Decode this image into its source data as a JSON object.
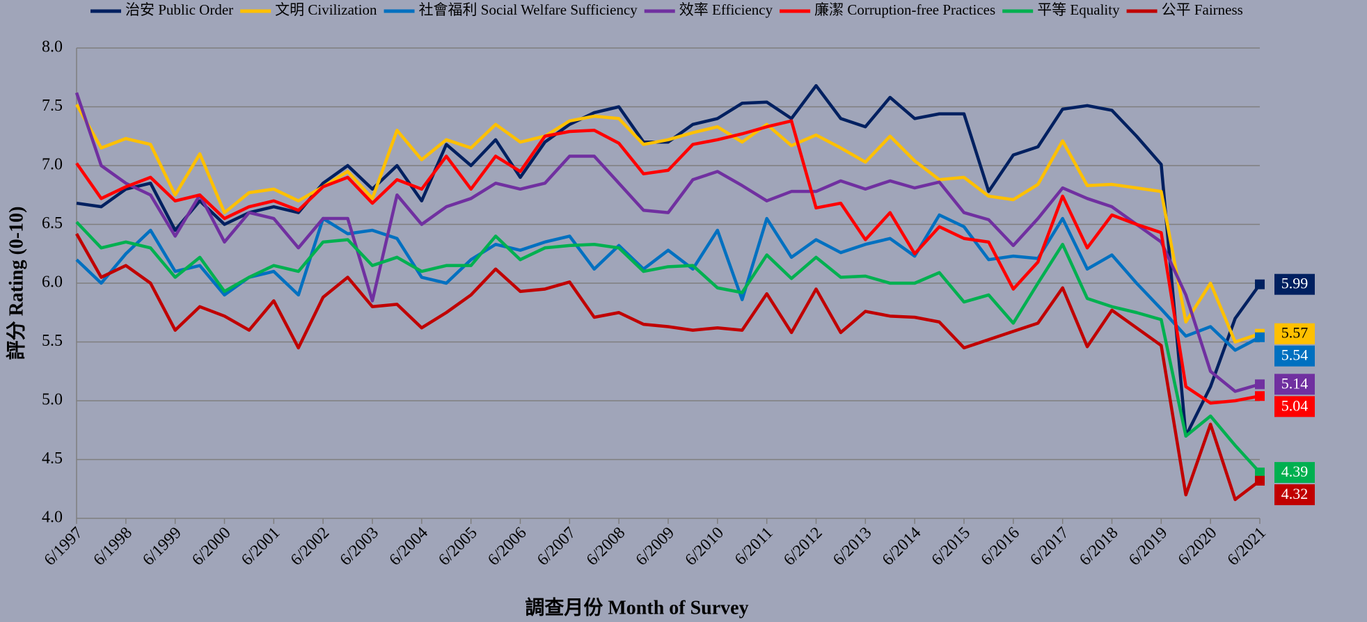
{
  "chart_data": {
    "type": "line",
    "x_label": "調查月份 Month of Survey",
    "y_label": "評分 Rating (0-10)",
    "x": [
      "6/1997",
      "12/1997",
      "6/1998",
      "12/1998",
      "6/1999",
      "12/1999",
      "6/2000",
      "12/2000",
      "6/2001",
      "12/2001",
      "6/2002",
      "12/2002",
      "6/2003",
      "12/2003",
      "6/2004",
      "12/2004",
      "6/2005",
      "12/2005",
      "6/2006",
      "12/2006",
      "6/2007",
      "12/2007",
      "6/2008",
      "12/2008",
      "6/2009",
      "12/2009",
      "6/2010",
      "12/2010",
      "6/2011",
      "12/2011",
      "6/2012",
      "12/2012",
      "6/2013",
      "12/2013",
      "6/2014",
      "12/2014",
      "6/2015",
      "12/2015",
      "6/2016",
      "12/2016",
      "6/2017",
      "12/2017",
      "6/2018",
      "12/2018",
      "6/2019",
      "12/2019",
      "6/2020",
      "12/2020",
      "6/2021"
    ],
    "xlim": [
      "6/1997",
      "6/2021"
    ],
    "xticks": [
      "6/1997",
      "6/1998",
      "6/1999",
      "6/2000",
      "6/2001",
      "6/2002",
      "6/2003",
      "6/2004",
      "6/2005",
      "6/2006",
      "6/2007",
      "6/2008",
      "6/2009",
      "6/2010",
      "6/2011",
      "6/2012",
      "6/2013",
      "6/2014",
      "6/2015",
      "6/2016",
      "6/2017",
      "6/2018",
      "6/2019",
      "6/2020",
      "6/2021"
    ],
    "ylim": [
      4,
      8
    ],
    "yticks": [
      {
        "value": 4,
        "label": "4.0"
      },
      {
        "value": 4.5,
        "label": "4.5"
      },
      {
        "value": 5,
        "label": "5.0"
      },
      {
        "value": 5.5,
        "label": "5.5"
      },
      {
        "value": 6,
        "label": "6.0"
      },
      {
        "value": 6.5,
        "label": "6.5"
      },
      {
        "value": 7,
        "label": "7.0"
      },
      {
        "value": 7.5,
        "label": "7.5"
      },
      {
        "value": 8,
        "label": "8.0"
      }
    ],
    "grid": true,
    "legend": "top",
    "series": [
      {
        "name": "治安 Public Order",
        "color": "#002060",
        "values": [
          6.68,
          6.65,
          6.8,
          6.85,
          6.45,
          6.7,
          6.5,
          6.6,
          6.65,
          6.6,
          6.85,
          7.0,
          6.8,
          7.0,
          6.7,
          7.18,
          7.0,
          7.22,
          6.9,
          7.2,
          7.35,
          7.45,
          7.5,
          7.2,
          7.2,
          7.35,
          7.4,
          7.53,
          7.54,
          7.4,
          7.68,
          7.4,
          7.33,
          7.58,
          7.4,
          7.44,
          7.44,
          6.78,
          7.09,
          7.16,
          7.48,
          7.51,
          7.47,
          7.25,
          7.01,
          4.7,
          5.12,
          5.7,
          5.99
        ]
      },
      {
        "name": "文明 Civilization",
        "color": "#ffc000",
        "values": [
          7.52,
          7.15,
          7.23,
          7.18,
          6.75,
          7.1,
          6.6,
          6.77,
          6.8,
          6.7,
          6.82,
          6.95,
          6.72,
          7.3,
          7.05,
          7.22,
          7.15,
          7.35,
          7.2,
          7.25,
          7.38,
          7.42,
          7.4,
          7.18,
          7.22,
          7.28,
          7.33,
          7.2,
          7.35,
          7.17,
          7.26,
          7.15,
          7.03,
          7.25,
          7.04,
          6.88,
          6.9,
          6.74,
          6.71,
          6.84,
          7.21,
          6.83,
          6.84,
          6.81,
          6.78,
          5.67,
          6.0,
          5.5,
          5.57
        ]
      },
      {
        "name": "社會福利 Social Welfare Sufficiency",
        "color": "#0070c0",
        "values": [
          6.2,
          6.0,
          6.25,
          6.45,
          6.1,
          6.15,
          5.9,
          6.05,
          6.1,
          5.9,
          6.55,
          6.42,
          6.45,
          6.38,
          6.05,
          6.0,
          6.2,
          6.33,
          6.28,
          6.35,
          6.4,
          6.12,
          6.32,
          6.12,
          6.28,
          6.12,
          6.45,
          5.86,
          6.55,
          6.22,
          6.37,
          6.26,
          6.33,
          6.38,
          6.23,
          6.58,
          6.48,
          6.2,
          6.23,
          6.21,
          6.55,
          6.12,
          6.24,
          6.0,
          5.78,
          5.55,
          5.63,
          5.43,
          5.54
        ]
      },
      {
        "name": "效率 Efficiency",
        "color": "#7030a0",
        "values": [
          7.62,
          7.0,
          6.85,
          6.75,
          6.4,
          6.75,
          6.35,
          6.6,
          6.55,
          6.3,
          6.55,
          6.55,
          5.85,
          6.75,
          6.5,
          6.65,
          6.72,
          6.85,
          6.8,
          6.85,
          7.08,
          7.08,
          6.85,
          6.62,
          6.6,
          6.88,
          6.95,
          6.83,
          6.7,
          6.78,
          6.78,
          6.87,
          6.8,
          6.87,
          6.81,
          6.86,
          6.6,
          6.54,
          6.32,
          6.55,
          6.81,
          6.72,
          6.65,
          6.5,
          6.35,
          5.9,
          5.25,
          5.08,
          5.14
        ]
      },
      {
        "name": "廉潔 Corruption-free Practices",
        "color": "#ff0000",
        "values": [
          7.02,
          6.72,
          6.82,
          6.9,
          6.7,
          6.75,
          6.55,
          6.65,
          6.7,
          6.62,
          6.82,
          6.9,
          6.68,
          6.88,
          6.8,
          7.08,
          6.8,
          7.08,
          6.95,
          7.25,
          7.29,
          7.3,
          7.19,
          6.93,
          6.96,
          7.18,
          7.22,
          7.27,
          7.33,
          7.38,
          6.64,
          6.68,
          6.37,
          6.6,
          6.25,
          6.48,
          6.38,
          6.35,
          5.95,
          6.18,
          6.74,
          6.3,
          6.58,
          6.5,
          6.43,
          5.12,
          4.98,
          5.0,
          5.04
        ]
      },
      {
        "name": "平等 Equality",
        "color": "#00b050",
        "values": [
          6.52,
          6.3,
          6.35,
          6.3,
          6.05,
          6.22,
          5.93,
          6.05,
          6.15,
          6.1,
          6.35,
          6.37,
          6.15,
          6.22,
          6.1,
          6.15,
          6.15,
          6.4,
          6.2,
          6.3,
          6.32,
          6.33,
          6.3,
          6.1,
          6.14,
          6.15,
          5.96,
          5.92,
          6.24,
          6.04,
          6.22,
          6.05,
          6.06,
          6.0,
          6.0,
          6.09,
          5.84,
          5.9,
          5.66,
          6.0,
          6.33,
          5.87,
          5.8,
          5.75,
          5.69,
          4.7,
          4.87,
          4.62,
          4.39
        ]
      },
      {
        "name": "公平 Fairness",
        "color": "#c00000",
        "values": [
          6.42,
          6.05,
          6.15,
          6.0,
          5.6,
          5.8,
          5.72,
          5.6,
          5.85,
          5.45,
          5.88,
          6.05,
          5.8,
          5.82,
          5.62,
          5.75,
          5.9,
          6.12,
          5.93,
          5.95,
          6.01,
          5.71,
          5.75,
          5.65,
          5.63,
          5.6,
          5.62,
          5.6,
          5.91,
          5.58,
          5.95,
          5.58,
          5.76,
          5.72,
          5.71,
          5.67,
          5.45,
          5.52,
          5.59,
          5.66,
          5.96,
          5.46,
          5.77,
          5.62,
          5.47,
          4.2,
          4.8,
          4.16,
          4.32
        ]
      }
    ]
  }
}
